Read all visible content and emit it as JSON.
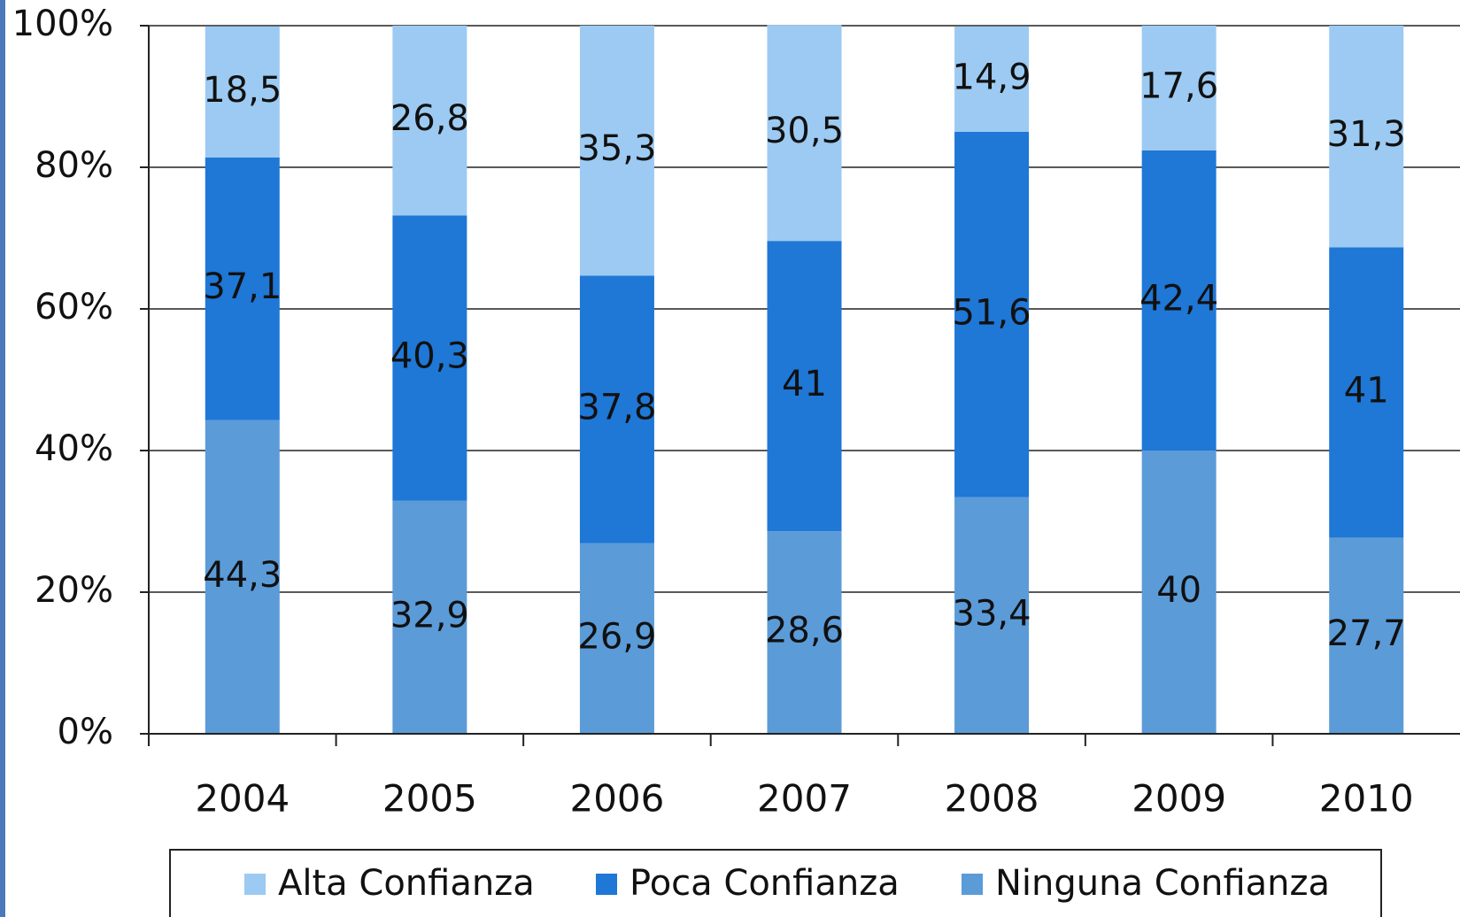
{
  "chart_data": {
    "type": "stacked_bar",
    "categories": [
      "2004",
      "2005",
      "2006",
      "2007",
      "2008",
      "2009",
      "2010"
    ],
    "series": [
      {
        "name": "Alta Confianza",
        "color": "#9ccaf2",
        "values": [
          18.5,
          26.8,
          35.3,
          30.5,
          14.9,
          17.6,
          31.3
        ],
        "value_labels": [
          "18,5",
          "26,8",
          "35,3",
          "30,5",
          "14,9",
          "17,6",
          "31,3"
        ]
      },
      {
        "name": "Poca Confianza",
        "color": "#1f77d6",
        "values": [
          37.1,
          40.3,
          37.8,
          41,
          51.6,
          42.4,
          41
        ],
        "value_labels": [
          "37,1",
          "40,3",
          "37,8",
          "41",
          "51,6",
          "42,4",
          "41"
        ]
      },
      {
        "name": "Ninguna Confianza",
        "color": "#5b9bd8",
        "values": [
          44.3,
          32.9,
          26.9,
          28.6,
          33.4,
          40,
          27.7
        ],
        "value_labels": [
          "44,3",
          "32,9",
          "26,9",
          "28,6",
          "33,4",
          "40",
          "27,7"
        ]
      }
    ],
    "ylim": [
      0,
      100
    ],
    "yticks": [
      {
        "value": 0,
        "label": "0%"
      },
      {
        "value": 20,
        "label": "20%"
      },
      {
        "value": 40,
        "label": "40%"
      },
      {
        "value": 60,
        "label": "60%"
      },
      {
        "value": 80,
        "label": "80%"
      },
      {
        "value": 100,
        "label": "100%"
      }
    ],
    "grid": true,
    "legend": "bottom"
  }
}
